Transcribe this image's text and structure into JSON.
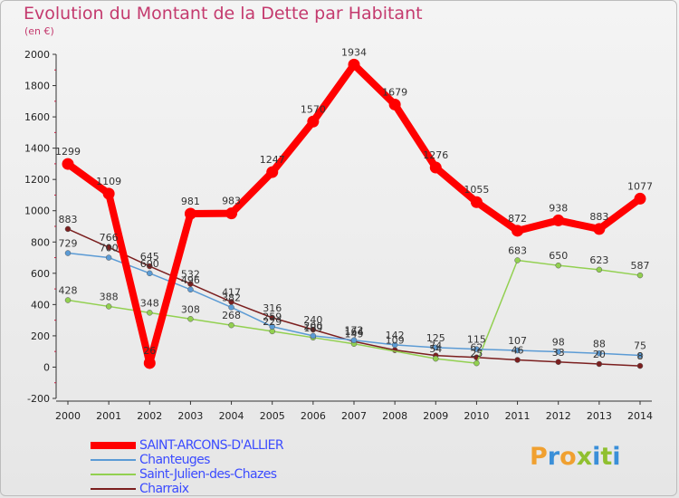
{
  "chart_data": {
    "type": "line",
    "title": "Evolution du Montant de la Dette par Habitant",
    "subtitle": "(en €)",
    "xlabel": "",
    "ylabel": "",
    "ylim": [
      -200,
      2000
    ],
    "yticks": [
      -200,
      0,
      200,
      400,
      600,
      800,
      1000,
      1200,
      1400,
      1600,
      1800,
      2000
    ],
    "grid": false,
    "legend": "bottom-left",
    "x": [
      "2000",
      "2001",
      "2002",
      "2003",
      "2004",
      "2005",
      "2006",
      "2007",
      "2008",
      "2009",
      "2010",
      "2011",
      "2012",
      "2013",
      "2014"
    ],
    "series": [
      {
        "name": "SAINT-ARCONS-D'ALLIER",
        "color": "#ff0000",
        "values": [
          1299,
          1109,
          26,
          981,
          983,
          1247,
          1570,
          1934,
          1679,
          1276,
          1055,
          872,
          938,
          883,
          1077
        ],
        "labels": [
          "1299",
          "1109",
          "26",
          "981",
          "983",
          "1247",
          "1570",
          "1934",
          "1679",
          "1276",
          "1055",
          "872",
          "938",
          "883",
          "1077"
        ]
      },
      {
        "name": "Chanteuges",
        "color": "#5b9bd5",
        "values": [
          729,
          700,
          600,
          496,
          382,
          259,
          200,
          172,
          142,
          125,
          115,
          107,
          98,
          88,
          75
        ],
        "labels": [
          "729",
          "700",
          "600",
          "496",
          "382",
          "259",
          "200",
          "172",
          "142",
          "125",
          "115",
          "107",
          "98",
          "88",
          "75"
        ]
      },
      {
        "name": "Saint-Julien-des-Chazes",
        "color": "#92d050",
        "values": [
          428,
          388,
          348,
          308,
          268,
          229,
          189,
          149,
          null,
          54,
          25,
          683,
          650,
          623,
          587
        ],
        "labels": [
          "428",
          "388",
          "348",
          "308",
          "268",
          "229",
          "189",
          "149",
          "",
          "54",
          "25",
          "683",
          "650",
          "623",
          "587"
        ]
      },
      {
        "name": "Charraix",
        "color": "#7b1f1f",
        "values": [
          883,
          766,
          645,
          532,
          417,
          316,
          240,
          164,
          109,
          74,
          62,
          46,
          33,
          20,
          8
        ],
        "labels": [
          "883",
          "766",
          "645",
          "532",
          "417",
          "316",
          "240",
          "164",
          "109",
          "74",
          "62",
          "46",
          "33",
          "20",
          "8"
        ]
      }
    ]
  },
  "logo": {
    "text": "Proxiti",
    "colors": [
      "#f0a030",
      "#3a8fd8",
      "#f0a030",
      "#90c030",
      "#3a8fd8",
      "#90c030",
      "#3a8fd8"
    ]
  }
}
